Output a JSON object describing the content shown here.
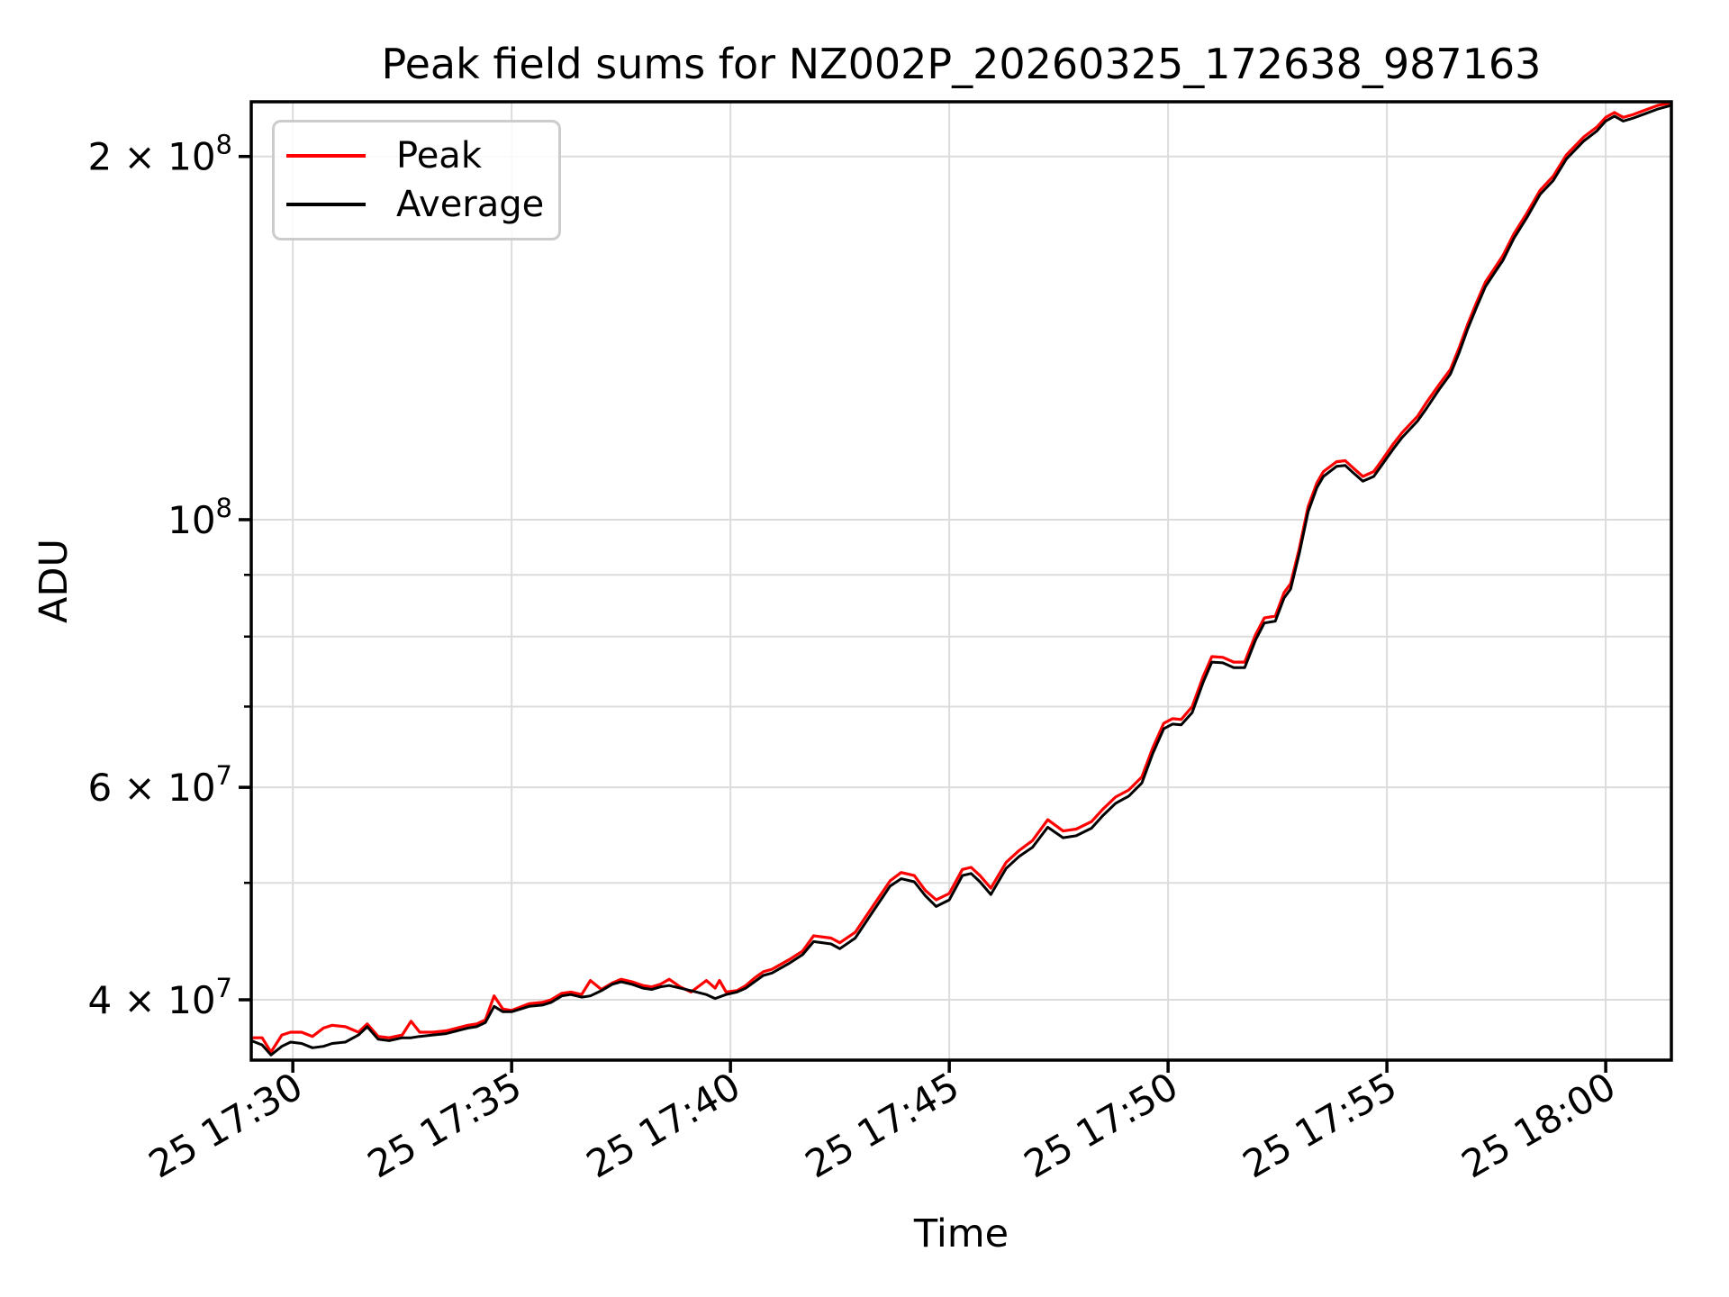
{
  "header": {
    "title": "Peak field sums for NZ002P_20260325_172638_987163"
  },
  "chart_data": {
    "type": "line",
    "title": "Peak field sums for NZ002P_20260325_172638_987163",
    "xlabel": "Time",
    "ylabel": "ADU",
    "yscale": "log",
    "grid": true,
    "x_unit": "minutes after 17:00 on day 25",
    "x_domain": [
      29.05,
      61.5
    ],
    "y_domain": [
      35650000.0,
      222000000.0
    ],
    "x_ticks": [
      {
        "minute": 30,
        "label": "25 17:30"
      },
      {
        "minute": 35,
        "label": "25 17:35"
      },
      {
        "minute": 40,
        "label": "25 17:40"
      },
      {
        "minute": 45,
        "label": "25 17:45"
      },
      {
        "minute": 50,
        "label": "25 17:50"
      },
      {
        "minute": 55,
        "label": "25 17:55"
      },
      {
        "minute": 60,
        "label": "25 18:00"
      }
    ],
    "y_major_ticks": [
      {
        "value": 40000000.0,
        "prefix": "4 × 10",
        "sup": "7"
      },
      {
        "value": 60000000.0,
        "prefix": "6 × 10",
        "sup": "7"
      },
      {
        "value": 100000000.0,
        "prefix": "10",
        "sup": "8"
      },
      {
        "value": 200000000.0,
        "prefix": "2 × 10",
        "sup": "8"
      }
    ],
    "y_minor_ticks": [
      50000000.0,
      70000000.0,
      80000000.0,
      90000000.0
    ],
    "legend": [
      {
        "label": "Peak",
        "color": "#ff0000"
      },
      {
        "label": "Average",
        "color": "#000000"
      }
    ],
    "colors": {
      "grid": "#dcdcdc",
      "spine": "#000000",
      "background": "#ffffff"
    },
    "series": [
      {
        "name": "Peak",
        "color": "#ff0000",
        "width": 3.2,
        "points": [
          [
            29.05,
            37200000.0
          ],
          [
            29.3,
            37200000.0
          ],
          [
            29.5,
            36200000.0
          ],
          [
            29.75,
            37400000.0
          ],
          [
            29.95,
            37600000.0
          ],
          [
            30.2,
            37600000.0
          ],
          [
            30.45,
            37300000.0
          ],
          [
            30.7,
            37900000.0
          ],
          [
            30.9,
            38100000.0
          ],
          [
            31.2,
            38000000.0
          ],
          [
            31.5,
            37600000.0
          ],
          [
            31.7,
            38200000.0
          ],
          [
            31.95,
            37300000.0
          ],
          [
            32.2,
            37200000.0
          ],
          [
            32.5,
            37400000.0
          ],
          [
            32.7,
            38400000.0
          ],
          [
            32.9,
            37600000.0
          ],
          [
            33.2,
            37600000.0
          ],
          [
            33.5,
            37700000.0
          ],
          [
            33.75,
            37900000.0
          ],
          [
            34.0,
            38100000.0
          ],
          [
            34.2,
            38200000.0
          ],
          [
            34.4,
            38500000.0
          ],
          [
            34.6,
            40300000.0
          ],
          [
            34.8,
            39300000.0
          ],
          [
            35.0,
            39200000.0
          ],
          [
            35.4,
            39700000.0
          ],
          [
            35.7,
            39800000.0
          ],
          [
            35.9,
            40000000.0
          ],
          [
            36.15,
            40500000.0
          ],
          [
            36.35,
            40600000.0
          ],
          [
            36.6,
            40400000.0
          ],
          [
            36.8,
            41500000.0
          ],
          [
            37.05,
            40800000.0
          ],
          [
            37.3,
            41300000.0
          ],
          [
            37.5,
            41600000.0
          ],
          [
            37.75,
            41400000.0
          ],
          [
            38.0,
            41100000.0
          ],
          [
            38.2,
            41000000.0
          ],
          [
            38.4,
            41200000.0
          ],
          [
            38.6,
            41600000.0
          ],
          [
            38.85,
            41000000.0
          ],
          [
            39.1,
            40600000.0
          ],
          [
            39.45,
            41500000.0
          ],
          [
            39.65,
            40900000.0
          ],
          [
            39.75,
            41500000.0
          ],
          [
            39.9,
            40600000.0
          ],
          [
            40.15,
            40700000.0
          ],
          [
            40.35,
            41100000.0
          ],
          [
            40.55,
            41700000.0
          ],
          [
            40.75,
            42200000.0
          ],
          [
            40.95,
            42400000.0
          ],
          [
            41.15,
            42800000.0
          ],
          [
            41.35,
            43200000.0
          ],
          [
            41.65,
            43900000.0
          ],
          [
            41.9,
            45200000.0
          ],
          [
            42.3,
            45000000.0
          ],
          [
            42.5,
            44600000.0
          ],
          [
            42.85,
            45500000.0
          ],
          [
            43.25,
            47800000.0
          ],
          [
            43.65,
            50200000.0
          ],
          [
            43.9,
            51000000.0
          ],
          [
            44.2,
            50700000.0
          ],
          [
            44.45,
            49300000.0
          ],
          [
            44.7,
            48400000.0
          ],
          [
            45.0,
            49000000.0
          ],
          [
            45.3,
            51300000.0
          ],
          [
            45.5,
            51500000.0
          ],
          [
            45.7,
            50700000.0
          ],
          [
            45.95,
            49500000.0
          ],
          [
            46.3,
            52000000.0
          ],
          [
            46.6,
            53200000.0
          ],
          [
            46.9,
            54200000.0
          ],
          [
            47.25,
            56400000.0
          ],
          [
            47.6,
            55200000.0
          ],
          [
            47.9,
            55400000.0
          ],
          [
            48.25,
            56200000.0
          ],
          [
            48.5,
            57500000.0
          ],
          [
            48.8,
            58900000.0
          ],
          [
            49.1,
            59700000.0
          ],
          [
            49.4,
            61200000.0
          ],
          [
            49.65,
            64700000.0
          ],
          [
            49.9,
            67800000.0
          ],
          [
            50.1,
            68400000.0
          ],
          [
            50.3,
            68300000.0
          ],
          [
            50.55,
            70000000.0
          ],
          [
            50.8,
            74100000.0
          ],
          [
            51.0,
            77000000.0
          ],
          [
            51.25,
            76900000.0
          ],
          [
            51.5,
            76200000.0
          ],
          [
            51.75,
            76200000.0
          ],
          [
            52.0,
            80300000.0
          ],
          [
            52.2,
            82900000.0
          ],
          [
            52.45,
            83200000.0
          ],
          [
            52.65,
            87000000.0
          ],
          [
            52.8,
            88500000.0
          ],
          [
            53.0,
            94700000.0
          ],
          [
            53.2,
            102500000.0
          ],
          [
            53.4,
            107300000.0
          ],
          [
            53.55,
            109600000.0
          ],
          [
            53.85,
            111700000.0
          ],
          [
            54.05,
            111900000.0
          ],
          [
            54.25,
            110200000.0
          ],
          [
            54.45,
            108600000.0
          ],
          [
            54.7,
            109600000.0
          ],
          [
            54.9,
            112200000.0
          ],
          [
            55.15,
            115600000.0
          ],
          [
            55.35,
            118100000.0
          ],
          [
            55.7,
            121800000.0
          ],
          [
            55.9,
            125000000.0
          ],
          [
            56.2,
            129500000.0
          ],
          [
            56.45,
            133200000.0
          ],
          [
            56.65,
            138800000.0
          ],
          [
            56.85,
            145300000.0
          ],
          [
            57.05,
            151400000.0
          ],
          [
            57.25,
            157400000.0
          ],
          [
            57.45,
            161400000.0
          ],
          [
            57.65,
            165500000.0
          ],
          [
            57.9,
            172500000.0
          ],
          [
            58.2,
            179500000.0
          ],
          [
            58.5,
            187500000.0
          ],
          [
            58.8,
            192600000.0
          ],
          [
            59.1,
            200600000.0
          ],
          [
            59.5,
            207600000.0
          ],
          [
            59.8,
            211600000.0
          ],
          [
            60.0,
            215500000.0
          ],
          [
            60.2,
            217500000.0
          ],
          [
            60.4,
            215500000.0
          ],
          [
            60.6,
            216500000.0
          ],
          [
            60.9,
            218500000.0
          ],
          [
            61.2,
            220500000.0
          ],
          [
            61.5,
            221500000.0
          ]
        ]
      },
      {
        "name": "Average",
        "color": "#000000",
        "width": 3.0,
        "points": [
          [
            29.05,
            37000000.0
          ],
          [
            29.3,
            36700000.0
          ],
          [
            29.5,
            36000000.0
          ],
          [
            29.75,
            36600000.0
          ],
          [
            29.95,
            36900000.0
          ],
          [
            30.2,
            36800000.0
          ],
          [
            30.45,
            36500000.0
          ],
          [
            30.7,
            36600000.0
          ],
          [
            30.9,
            36800000.0
          ],
          [
            31.2,
            36900000.0
          ],
          [
            31.5,
            37400000.0
          ],
          [
            31.7,
            38000000.0
          ],
          [
            31.95,
            37100000.0
          ],
          [
            32.2,
            37000000.0
          ],
          [
            32.5,
            37200000.0
          ],
          [
            32.7,
            37200000.0
          ],
          [
            32.9,
            37300000.0
          ],
          [
            33.2,
            37400000.0
          ],
          [
            33.5,
            37500000.0
          ],
          [
            33.75,
            37700000.0
          ],
          [
            34.0,
            37900000.0
          ],
          [
            34.2,
            38000000.0
          ],
          [
            34.4,
            38300000.0
          ],
          [
            34.6,
            39500000.0
          ],
          [
            34.8,
            39100000.0
          ],
          [
            35.0,
            39100000.0
          ],
          [
            35.4,
            39500000.0
          ],
          [
            35.7,
            39600000.0
          ],
          [
            35.9,
            39800000.0
          ],
          [
            36.15,
            40300000.0
          ],
          [
            36.35,
            40400000.0
          ],
          [
            36.6,
            40200000.0
          ],
          [
            36.8,
            40300000.0
          ],
          [
            37.05,
            40700000.0
          ],
          [
            37.3,
            41200000.0
          ],
          [
            37.5,
            41400000.0
          ],
          [
            37.75,
            41200000.0
          ],
          [
            38.0,
            40900000.0
          ],
          [
            38.2,
            40800000.0
          ],
          [
            38.4,
            41000000.0
          ],
          [
            38.6,
            41100000.0
          ],
          [
            38.85,
            40900000.0
          ],
          [
            39.1,
            40700000.0
          ],
          [
            39.45,
            40400000.0
          ],
          [
            39.65,
            40100000.0
          ],
          [
            39.9,
            40400000.0
          ],
          [
            40.15,
            40600000.0
          ],
          [
            40.35,
            40900000.0
          ],
          [
            40.55,
            41400000.0
          ],
          [
            40.75,
            41900000.0
          ],
          [
            40.95,
            42100000.0
          ],
          [
            41.15,
            42500000.0
          ],
          [
            41.35,
            42900000.0
          ],
          [
            41.65,
            43600000.0
          ],
          [
            41.9,
            44700000.0
          ],
          [
            42.3,
            44500000.0
          ],
          [
            42.5,
            44100000.0
          ],
          [
            42.85,
            45000000.0
          ],
          [
            43.25,
            47300000.0
          ],
          [
            43.65,
            49700000.0
          ],
          [
            43.9,
            50400000.0
          ],
          [
            44.2,
            50100000.0
          ],
          [
            44.45,
            48800000.0
          ],
          [
            44.7,
            47800000.0
          ],
          [
            45.0,
            48400000.0
          ],
          [
            45.3,
            50700000.0
          ],
          [
            45.5,
            50900000.0
          ],
          [
            45.7,
            50100000.0
          ],
          [
            45.95,
            48900000.0
          ],
          [
            46.3,
            51400000.0
          ],
          [
            46.6,
            52600000.0
          ],
          [
            46.9,
            53500000.0
          ],
          [
            47.25,
            55600000.0
          ],
          [
            47.6,
            54500000.0
          ],
          [
            47.9,
            54700000.0
          ],
          [
            48.25,
            55500000.0
          ],
          [
            48.5,
            56800000.0
          ],
          [
            48.8,
            58200000.0
          ],
          [
            49.1,
            59000000.0
          ],
          [
            49.4,
            60500000.0
          ],
          [
            49.65,
            64000000.0
          ],
          [
            49.9,
            67100000.0
          ],
          [
            50.1,
            67700000.0
          ],
          [
            50.3,
            67600000.0
          ],
          [
            50.55,
            69200000.0
          ],
          [
            50.8,
            73300000.0
          ],
          [
            51.0,
            76200000.0
          ],
          [
            51.25,
            76100000.0
          ],
          [
            51.5,
            75400000.0
          ],
          [
            51.75,
            75400000.0
          ],
          [
            52.0,
            79500000.0
          ],
          [
            52.2,
            82100000.0
          ],
          [
            52.45,
            82400000.0
          ],
          [
            52.65,
            86100000.0
          ],
          [
            52.8,
            87600000.0
          ],
          [
            53.0,
            93800000.0
          ],
          [
            53.2,
            101500000.0
          ],
          [
            53.4,
            106300000.0
          ],
          [
            53.55,
            108600000.0
          ],
          [
            53.85,
            110700000.0
          ],
          [
            54.05,
            110900000.0
          ],
          [
            54.25,
            109200000.0
          ],
          [
            54.45,
            107600000.0
          ],
          [
            54.7,
            108600000.0
          ],
          [
            54.9,
            111200000.0
          ],
          [
            55.15,
            114500000.0
          ],
          [
            55.35,
            117000000.0
          ],
          [
            55.7,
            120700000.0
          ],
          [
            55.9,
            123600000.0
          ],
          [
            56.2,
            128300000.0
          ],
          [
            56.45,
            132000000.0
          ],
          [
            56.65,
            137500000.0
          ],
          [
            56.85,
            144000000.0
          ],
          [
            57.05,
            150000000.0
          ],
          [
            57.25,
            156000000.0
          ],
          [
            57.45,
            160000000.0
          ],
          [
            57.65,
            164000000.0
          ],
          [
            57.9,
            171000000.0
          ],
          [
            58.2,
            178000000.0
          ],
          [
            58.5,
            186000000.0
          ],
          [
            58.8,
            191000000.0
          ],
          [
            59.1,
            199000000.0
          ],
          [
            59.5,
            206000000.0
          ],
          [
            59.8,
            210000000.0
          ],
          [
            60.0,
            214000000.0
          ],
          [
            60.2,
            216000000.0
          ],
          [
            60.4,
            214000000.0
          ],
          [
            60.6,
            215000000.0
          ],
          [
            60.9,
            217000000.0
          ],
          [
            61.2,
            219000000.0
          ],
          [
            61.5,
            220500000.0
          ]
        ]
      }
    ]
  }
}
